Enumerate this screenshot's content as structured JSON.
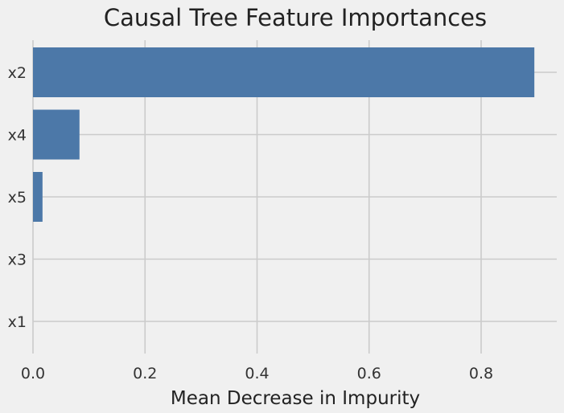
{
  "chart_data": {
    "type": "bar",
    "orientation": "horizontal",
    "title": "Causal Tree Feature Importances",
    "xlabel": "Mean Decrease in Impurity",
    "ylabel": "",
    "categories": [
      "x2",
      "x4",
      "x5",
      "x3",
      "x1"
    ],
    "values": [
      0.895,
      0.083,
      0.017,
      0.0,
      0.0
    ],
    "xlim": [
      0,
      0.935
    ],
    "xticks": [
      "0.0",
      "0.2",
      "0.4",
      "0.6",
      "0.8"
    ],
    "grid": true,
    "legend": "none",
    "colors": {
      "bar": "#4c78a8",
      "background": "#f0f0f0",
      "grid": "#cbcbcb"
    }
  }
}
